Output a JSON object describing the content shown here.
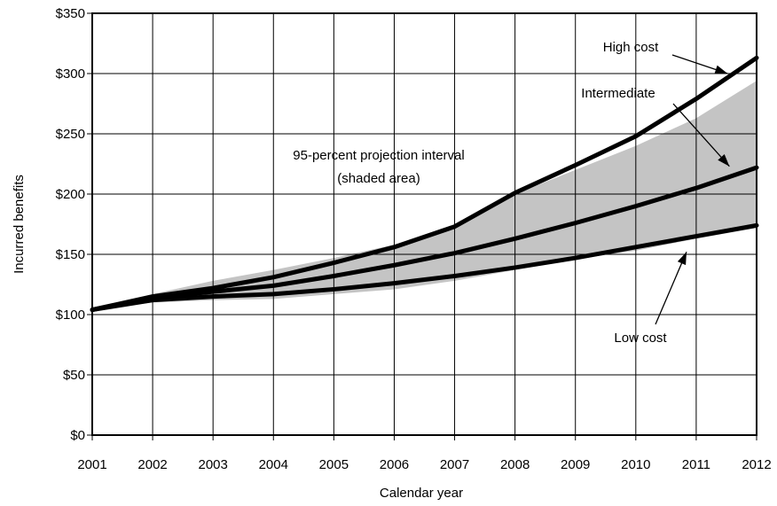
{
  "chart_data": {
    "type": "line",
    "title": "",
    "xlabel": "Calendar year",
    "ylabel": "Incurred benefits",
    "x": [
      2001,
      2002,
      2003,
      2004,
      2005,
      2006,
      2007,
      2008,
      2009,
      2010,
      2011,
      2012
    ],
    "xlim": [
      2001,
      2012
    ],
    "ylim": [
      0,
      350
    ],
    "y_tick_labels": [
      "$0",
      "$50",
      "$100",
      "$150",
      "$200",
      "$250",
      "$300",
      "$350"
    ],
    "grid": true,
    "series": [
      {
        "name": "High cost",
        "values": [
          104,
          115,
          122,
          131,
          143,
          156,
          173,
          201,
          224,
          248,
          279,
          313
        ]
      },
      {
        "name": "Intermediate",
        "values": [
          104,
          114,
          119,
          124,
          132,
          141,
          151,
          163,
          176,
          190,
          205,
          222
        ]
      },
      {
        "name": "Low cost",
        "values": [
          104,
          112,
          115,
          117,
          121,
          126,
          132,
          139,
          147,
          156,
          165,
          174
        ]
      }
    ],
    "interval": {
      "upper": [
        104,
        117,
        128,
        137,
        147,
        158,
        173,
        200,
        220,
        240,
        263,
        294
      ],
      "lower": [
        104,
        110,
        112,
        113,
        117,
        121,
        128,
        137,
        146,
        153,
        163,
        172
      ]
    },
    "annotations": {
      "interval_line1": "95-percent projection interval",
      "interval_line2": "(shaded area)",
      "high": "High cost",
      "intermediate": "Intermediate",
      "low": "Low cost"
    }
  }
}
